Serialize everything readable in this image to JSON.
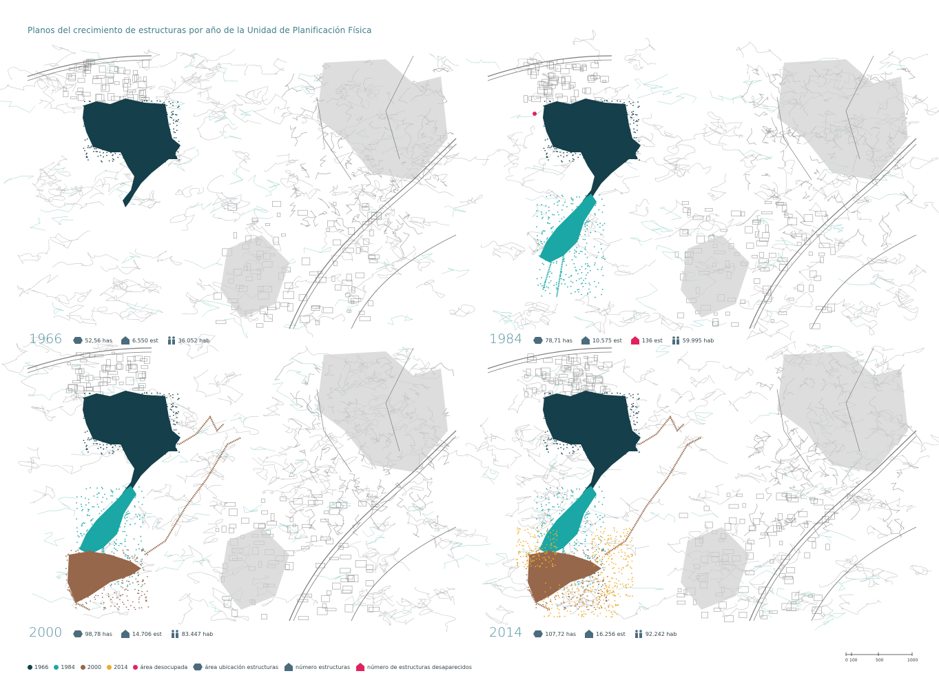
{
  "title": "Planos del crecimiento de estructuras por año de la Unidad de Planificación Física",
  "colors": {
    "y1966": "#153f4a",
    "y1984": "#1aa7a6",
    "y2000": "#96674a",
    "y2014": "#eeab28",
    "desocupada": "#e0235f",
    "icon": "#4a6c7d",
    "map_gray": "#b9b9b9",
    "contour_teal": "#3fa8a0"
  },
  "panels": [
    {
      "year": "1966",
      "area": "52,56 has",
      "structures": "6.550 est",
      "removed": "",
      "population": "36.052 hab"
    },
    {
      "year": "1984",
      "area": "78,71 has",
      "structures": "10.575 est",
      "removed": "136 est",
      "population": "59.995 hab"
    },
    {
      "year": "2000",
      "area": "98,78 has",
      "structures": "14.706 est",
      "removed": "",
      "population": "83.447 hab"
    },
    {
      "year": "2014",
      "area": "107,72 has",
      "structures": "16.256 est",
      "removed": "",
      "population": "92.242 hab"
    }
  ],
  "legend": {
    "y1966": "1966",
    "y1984": "1984",
    "y2000": "2000",
    "y2014": "2014",
    "desocupada": "área desocupada",
    "area_ubicacion": "área ubicación estructuras",
    "numero_estructuras": "número estructuras",
    "desaparecidos": "número de estructuras desaparecidos"
  },
  "scale_bar": {
    "labels": [
      "0",
      "100",
      "500",
      "1000"
    ]
  },
  "icons": [
    "hexagon-area-icon",
    "house-icon",
    "house-removed-icon",
    "people-icon"
  ]
}
